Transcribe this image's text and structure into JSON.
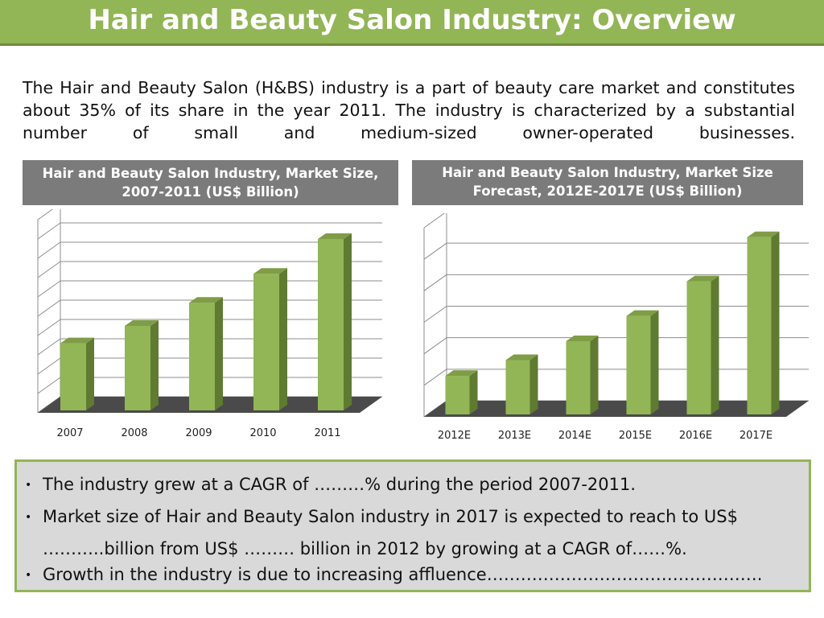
{
  "title": "Hair and Beauty Salon Industry: Overview",
  "intro": "The Hair and Beauty Salon (H&BS) industry is a part of beauty care market and constitutes about 35% of its share in the year 2011. The industry is characterized by a substantial number of small and medium-sized owner-operated businesses.",
  "colors": {
    "title_bg": "#92b556",
    "bar": "#92b556",
    "bar_side": "#5f7a31",
    "header_bg": "#7b7b7b",
    "panel_bg": "#d9d9d9"
  },
  "chart_data": [
    {
      "type": "bar",
      "title": "Hair and Beauty Salon Industry, Market Size, 2007-2011 (US$ Billion)",
      "categories": [
        "2007",
        "2008",
        "2009",
        "2010",
        "2011"
      ],
      "values": [
        3.6,
        4.5,
        5.7,
        7.2,
        9.0
      ],
      "ylim": [
        0,
        10
      ],
      "grid": true,
      "legend": "none"
    },
    {
      "type": "bar",
      "title": "Hair and Beauty Salon Industry, Market Size Forecast, 2012E-2017E (US$ Billion)",
      "categories": [
        "2012E",
        "2013E",
        "2014E",
        "2015E",
        "2016E",
        "2017E"
      ],
      "values": [
        1.3,
        1.8,
        2.4,
        3.2,
        4.3,
        5.7
      ],
      "ylim": [
        0,
        6
      ],
      "grid": true,
      "legend": "none"
    }
  ],
  "bullets": {
    "b1": "The industry grew at a CAGR of ………% during the period 2007-2011.",
    "b2a": "Market size of Hair and Beauty Salon industry in 2017 is expected to reach to US$",
    "b2b": "………..billion from US$ ……… billion in 2012 by growing at a CAGR of……%.",
    "b3": "Growth in the industry is due to increasing affluence………………………………………….",
    "bullet_glyph": "•"
  }
}
